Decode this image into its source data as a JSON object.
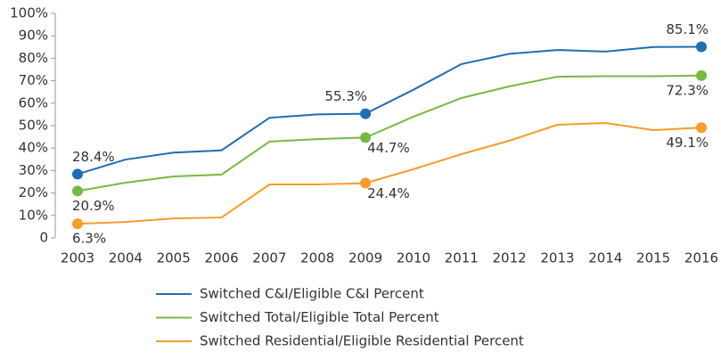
{
  "chart_data": {
    "type": "line",
    "categories": [
      "2003",
      "2004",
      "2005",
      "2006",
      "2007",
      "2008",
      "2009",
      "2010",
      "2011",
      "2012",
      "2013",
      "2014",
      "2015",
      "2016"
    ],
    "series": [
      {
        "name": "Switched C&I/Eligible C&I Percent",
        "color": "#1f6db5",
        "values": [
          28.4,
          34.9,
          38,
          39,
          53.5,
          55,
          55.3,
          66,
          77.4,
          82,
          83.7,
          83,
          85,
          85.1
        ],
        "value_labels": [
          "28.4%",
          null,
          null,
          null,
          null,
          null,
          "55.3%",
          null,
          null,
          null,
          null,
          null,
          null,
          "85.1%"
        ]
      },
      {
        "name": "Switched Total/Eligible Total Percent",
        "color": "#77b843",
        "values": [
          20.9,
          24.6,
          27.4,
          28.2,
          42.9,
          44,
          44.7,
          54,
          62.3,
          67.5,
          71.8,
          72,
          72,
          72.3
        ],
        "value_labels": [
          "20.9%",
          null,
          null,
          null,
          null,
          null,
          "44.7%",
          null,
          null,
          null,
          null,
          null,
          null,
          "72.3%"
        ]
      },
      {
        "name": "Switched Residential/Eligible Residential Percent",
        "color": "#f59c2a",
        "values": [
          6.3,
          7.1,
          8.7,
          9.1,
          23.8,
          23.8,
          24.4,
          30.6,
          37.3,
          43.3,
          50.4,
          51.2,
          48,
          49.1
        ],
        "value_labels": [
          "6.3%",
          null,
          null,
          null,
          null,
          null,
          "24.4%",
          null,
          null,
          null,
          null,
          null,
          null,
          "49.1%"
        ]
      }
    ],
    "ylim": [
      0,
      100
    ],
    "yticks": [
      0,
      {
        "value": 10,
        "label": "10%"
      },
      {
        "value": 20,
        "label": "20%"
      },
      {
        "value": 30,
        "label": "30%"
      },
      {
        "value": 40,
        "label": "40%"
      },
      {
        "value": 50,
        "label": "50%"
      },
      {
        "value": 60,
        "label": "60%"
      },
      {
        "value": 70,
        "label": "70%"
      },
      {
        "value": 80,
        "label": "80%"
      },
      {
        "value": 90,
        "label": "90%"
      },
      {
        "value": 100,
        "label": "100%"
      }
    ],
    "grid": false,
    "legend": "bottom"
  }
}
